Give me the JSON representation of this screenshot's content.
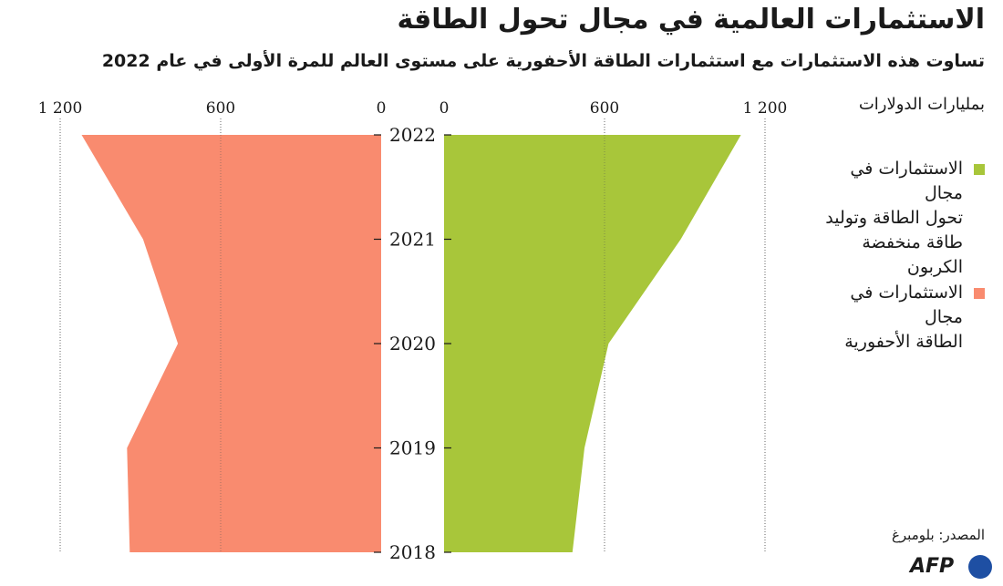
{
  "chart_data": {
    "type": "area",
    "title": "الاستثمارات العالمية في مجال تحول الطاقة",
    "subtitle": "تساوت هذه الاستثمارات مع استثمارات الطاقة الأحفورية على مستوى العالم للمرة الأولى في عام 2022",
    "unit_label": "بمليارات الدولارات",
    "layout": "back-to-back",
    "categories": [
      "2018",
      "2019",
      "2020",
      "2021",
      "2022"
    ],
    "category_axis": "vertical-center",
    "value_ticks_right": [
      "0",
      "600",
      "1 200"
    ],
    "value_ticks_left": [
      "1 200",
      "600",
      "0"
    ],
    "ylim": [
      0,
      1300
    ],
    "grid": true,
    "series": [
      {
        "name": "الاستثمارات في مجال تحول الطاقة وتوليد طاقة منخفضة الكربون",
        "side": "right",
        "color": "#a8c63a",
        "values": [
          480,
          525,
          615,
          885,
          1110
        ]
      },
      {
        "name": "الاستثمارات في مجال الطاقة الأحفورية",
        "side": "left",
        "color": "#f98b6f",
        "values": [
          940,
          950,
          760,
          890,
          1120
        ]
      }
    ]
  },
  "legend": {
    "items": [
      {
        "lines": [
          "الاستثمارات في مجال",
          "تحول الطاقة وتوليد",
          "طاقة منخفضة",
          "الكربون"
        ],
        "color": "#a8c63a"
      },
      {
        "lines": [
          "الاستثمارات في مجال",
          "الطاقة الأحفورية"
        ],
        "color": "#f98b6f"
      }
    ]
  },
  "source": "المصدر: بلومبرغ",
  "logo": {
    "text": "AFP"
  }
}
